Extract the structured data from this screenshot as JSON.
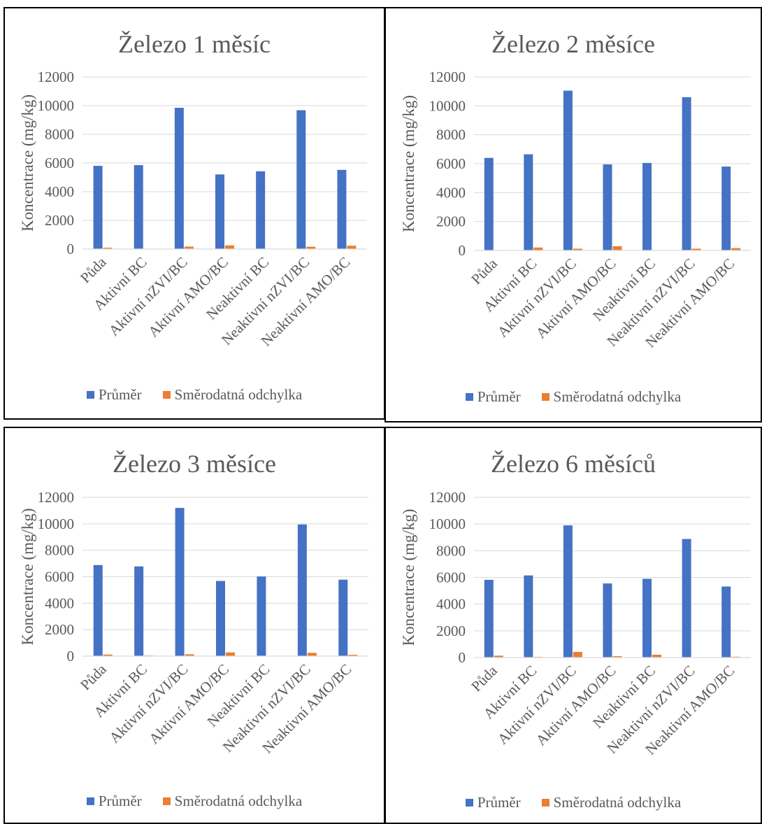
{
  "colors": {
    "mean": "#4472C4",
    "sd": "#ED7D31",
    "grid": "#D9D9D9",
    "text": "#595959"
  },
  "chart_data": [
    {
      "type": "bar",
      "title": "Železo 1 měsíc",
      "ylabel": "Koncentrace (mg/kg)",
      "xlabel": "",
      "ylim": [
        0,
        12000
      ],
      "yticks": [
        "0",
        "2000",
        "4000",
        "6000",
        "8000",
        "10000",
        "12000"
      ],
      "grid": true,
      "legend": "bottom",
      "categories": [
        "Půda",
        "Aktivní BC",
        "Aktivní nZVI/BC",
        "Aktivní AMO/BC",
        "Neaktivní BC",
        "Neaktivní nZVI/BC",
        "Neaktivní AMO/BC"
      ],
      "series": [
        {
          "name": "Průměr",
          "values": [
            5800,
            5850,
            9850,
            5200,
            5420,
            9680,
            5520
          ]
        },
        {
          "name": "Směrodatná odchylka",
          "values": [
            90,
            20,
            170,
            250,
            15,
            160,
            230
          ]
        }
      ]
    },
    {
      "type": "bar",
      "title": "Železo 2 měsíce",
      "ylabel": "Koncentrace (mg/kg)",
      "xlabel": "",
      "ylim": [
        0,
        12000
      ],
      "yticks": [
        "0",
        "2000",
        "4000",
        "6000",
        "8000",
        "10000",
        "12000"
      ],
      "grid": true,
      "legend": "bottom",
      "categories": [
        "Půda",
        "Aktivní BC",
        "Aktivní nZVI/BC",
        "Aktivní AMO/BC",
        "Neaktivní BC",
        "Neaktivní nZVI/BC",
        "Neaktivní AMO/BC"
      ],
      "series": [
        {
          "name": "Průměr",
          "values": [
            6400,
            6650,
            11050,
            5950,
            6050,
            10600,
            5800
          ]
        },
        {
          "name": "Směrodatná odchylka",
          "values": [
            25,
            200,
            120,
            290,
            20,
            120,
            160
          ]
        }
      ]
    },
    {
      "type": "bar",
      "title": "Železo 3 měsíce",
      "ylabel": "Koncentrace (mg/kg)",
      "xlabel": "",
      "ylim": [
        0,
        12000
      ],
      "yticks": [
        "0",
        "2000",
        "4000",
        "6000",
        "8000",
        "10000",
        "12000"
      ],
      "grid": true,
      "legend": "bottom",
      "categories": [
        "Půda",
        "Aktivní BC",
        "Aktivní nZVI/BC",
        "Aktivní AMO/BC",
        "Neaktivní BC",
        "Neaktivní nZVI/BC",
        "Neaktivní AMO/BC"
      ],
      "series": [
        {
          "name": "Průměr",
          "values": [
            6880,
            6780,
            11200,
            5680,
            6020,
            9950,
            5780
          ]
        },
        {
          "name": "Směrodatná odchylka",
          "values": [
            120,
            50,
            140,
            280,
            20,
            250,
            100
          ]
        }
      ]
    },
    {
      "type": "bar",
      "title": "Železo 6 měsíců",
      "ylabel": "Koncentrace (mg/kg)",
      "xlabel": "",
      "ylim": [
        0,
        12000
      ],
      "yticks": [
        "0",
        "2000",
        "4000",
        "6000",
        "8000",
        "10000",
        "12000"
      ],
      "grid": true,
      "legend": "bottom",
      "categories": [
        "Půda",
        "Aktivní BC",
        "Aktivní nZVI/BC",
        "Aktivní AMO/BC",
        "Neaktivní BC",
        "Neaktivní nZVI/BC",
        "Neaktivní AMO/BC"
      ],
      "series": [
        {
          "name": "Průměr",
          "values": [
            5820,
            6150,
            9900,
            5550,
            5900,
            8880,
            5320
          ]
        },
        {
          "name": "Směrodatná odchylka",
          "values": [
            140,
            50,
            420,
            100,
            210,
            15,
            60
          ]
        }
      ]
    }
  ]
}
